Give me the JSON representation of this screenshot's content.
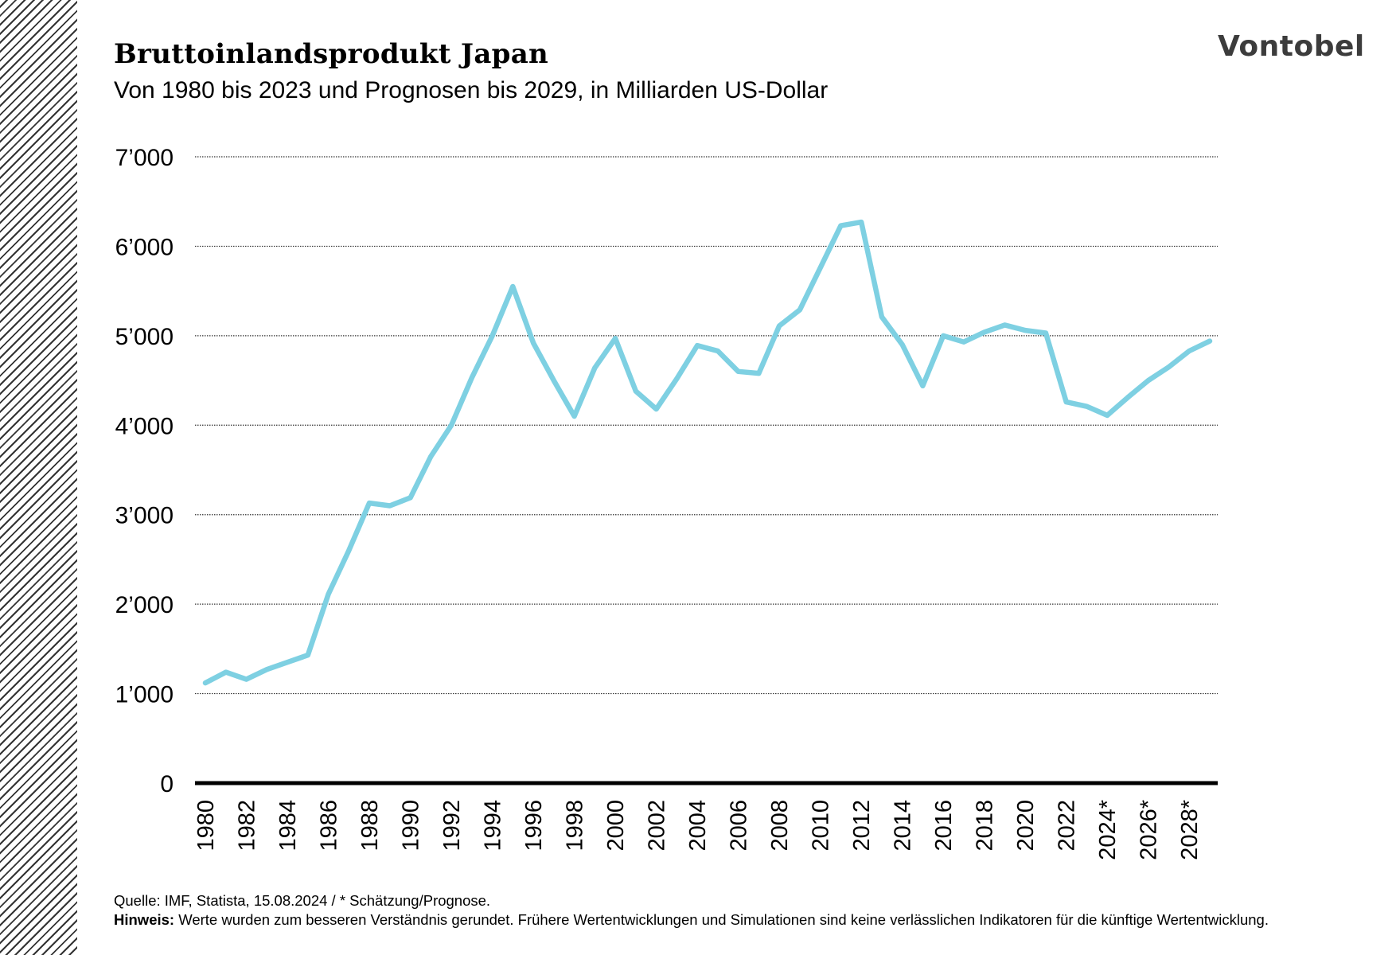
{
  "header": {
    "title": "Bruttoinlandsprodukt Japan",
    "subtitle": "Von 1980 bis 2023 und Prognosen bis 2029, in Milliarden US-Dollar",
    "logo": "Vontobel"
  },
  "footer": {
    "source": "Quelle: IMF, Statista, 15.08.2024 / * Schätzung/Prognose.",
    "note_label": "Hinweis:",
    "note_text": "Werte wurden zum besseren Verständnis gerundet. Frühere Wertentwicklungen und Simulationen sind keine verlässlichen Indikatoren für die künftige Wertentwicklung."
  },
  "chart_data": {
    "type": "line",
    "title": "Bruttoinlandsprodukt Japan",
    "subtitle": "Von 1980 bis 2023 und Prognosen bis 2029, in Milliarden US-Dollar",
    "xlabel": "",
    "ylabel": "",
    "ylim": [
      0,
      7000
    ],
    "yticks": [
      0,
      1000,
      2000,
      3000,
      4000,
      5000,
      6000,
      7000
    ],
    "ytick_labels": [
      "0",
      "1’000",
      "2’000",
      "3’000",
      "4’000",
      "5’000",
      "6’000",
      "7’000"
    ],
    "x": [
      1980,
      1981,
      1982,
      1983,
      1984,
      1985,
      1986,
      1987,
      1988,
      1989,
      1990,
      1991,
      1992,
      1993,
      1994,
      1995,
      1996,
      1997,
      1998,
      1999,
      2000,
      2001,
      2002,
      2003,
      2004,
      2005,
      2006,
      2007,
      2008,
      2009,
      2010,
      2011,
      2012,
      2013,
      2014,
      2015,
      2016,
      2017,
      2018,
      2019,
      2020,
      2021,
      2022,
      2023,
      2024,
      2025,
      2026,
      2027,
      2028,
      2029
    ],
    "xtick_labels": [
      "1980",
      "1982",
      "1984",
      "1986",
      "1988",
      "1990",
      "1992",
      "1994",
      "1996",
      "1998",
      "2000",
      "2002",
      "2004",
      "2006",
      "2008",
      "2010",
      "2012",
      "2014",
      "2016",
      "2018",
      "2020",
      "2022",
      "2024*",
      "2026*",
      "2028*"
    ],
    "xtick_years": [
      1980,
      1982,
      1984,
      1986,
      1988,
      1990,
      1992,
      1994,
      1996,
      1998,
      2000,
      2002,
      2004,
      2006,
      2008,
      2010,
      2012,
      2014,
      2016,
      2018,
      2020,
      2022,
      2024,
      2026,
      2028
    ],
    "series": [
      {
        "values": [
          1120,
          1240,
          1160,
          1270,
          1350,
          1430,
          2110,
          2600,
          3130,
          3100,
          3190,
          3650,
          4000,
          4530,
          5000,
          5550,
          4920,
          4500,
          4100,
          4640,
          4970,
          4380,
          4180,
          4520,
          4890,
          4830,
          4600,
          4580,
          5110,
          5290,
          5760,
          6230,
          6270,
          5210,
          4900,
          4440,
          5000,
          4930,
          5040,
          5120,
          5060,
          5030,
          4260,
          4210,
          4110,
          4310,
          4500,
          4650,
          4830,
          4940
        ],
        "color": "#7ed0e2"
      }
    ],
    "grid": true,
    "legend": "none"
  }
}
